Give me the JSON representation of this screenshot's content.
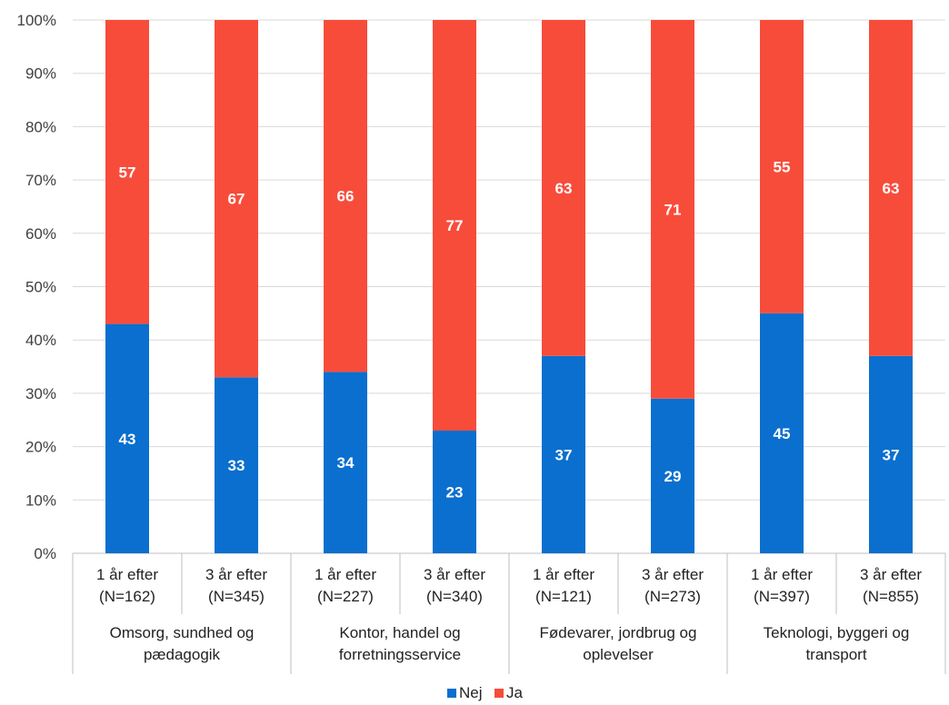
{
  "chart_data": {
    "type": "bar",
    "stacked": true,
    "percent_axis": true,
    "ylim": [
      0,
      100
    ],
    "y_ticks": [
      "0%",
      "10%",
      "20%",
      "30%",
      "40%",
      "50%",
      "60%",
      "70%",
      "80%",
      "90%",
      "100%"
    ],
    "categories": [
      [
        "1 år efter",
        "(N=162)"
      ],
      [
        "3 år efter",
        "(N=345)"
      ],
      [
        "1 år efter",
        "(N=227)"
      ],
      [
        "3 år efter",
        "(N=340)"
      ],
      [
        "1 år efter",
        "(N=121)"
      ],
      [
        "3 år efter",
        "(N=273)"
      ],
      [
        "1 år efter",
        "(N=397)"
      ],
      [
        "3 år efter",
        "(N=855)"
      ]
    ],
    "groups": [
      {
        "label": [
          "Omsorg, sundhed og",
          "pædagogik"
        ],
        "span": 2
      },
      {
        "label": [
          "Kontor, handel og",
          "forretningsservice"
        ],
        "span": 2
      },
      {
        "label": [
          "Fødevarer, jordbrug og",
          "oplevelser"
        ],
        "span": 2
      },
      {
        "label": [
          "Teknologi, byggeri og",
          "transport"
        ],
        "span": 2
      }
    ],
    "series": [
      {
        "name": "Nej",
        "color": "#0a6fce",
        "values": [
          43,
          33,
          34,
          23,
          37,
          29,
          45,
          37
        ]
      },
      {
        "name": "Ja",
        "color": "#f84c3b",
        "values": [
          57,
          67,
          66,
          77,
          63,
          71,
          55,
          63
        ]
      }
    ],
    "grid": true,
    "legend_position": "bottom",
    "data_labels": true
  }
}
